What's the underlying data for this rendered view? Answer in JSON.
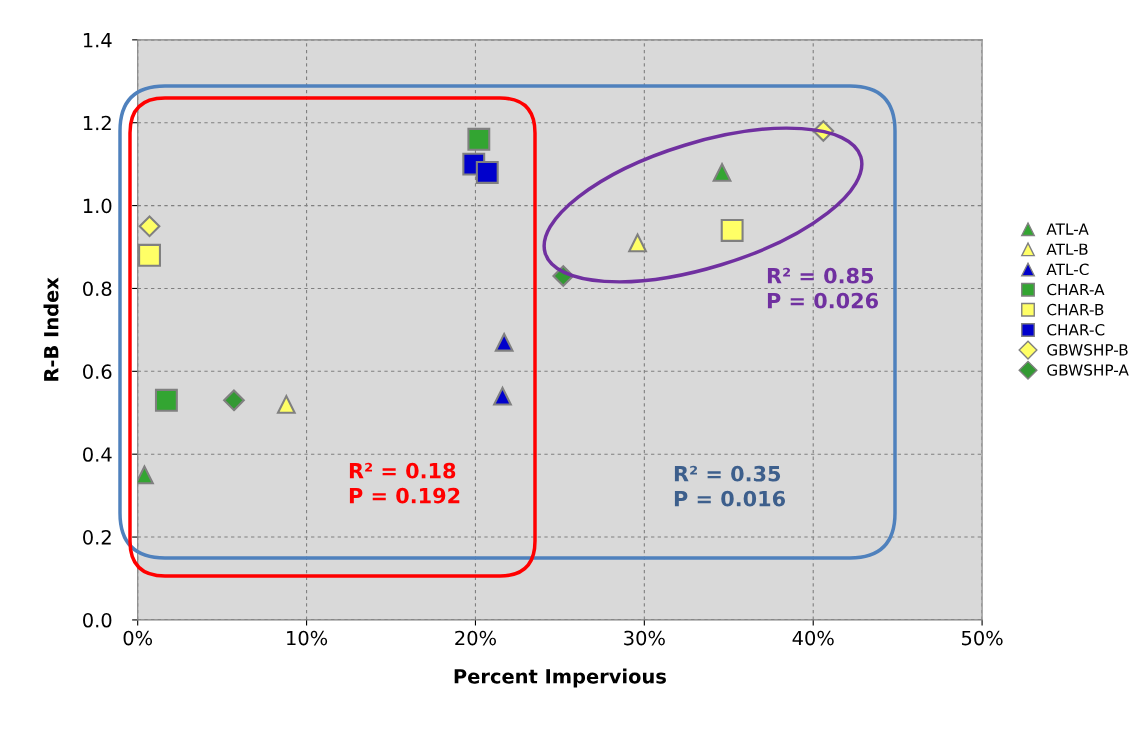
{
  "chart_data": {
    "type": "scatter",
    "xlabel": "Percent Impervious",
    "ylabel": "R-B Index",
    "xlim": [
      0,
      50
    ],
    "xticks": [
      {
        "value": 0,
        "label": "0%"
      },
      {
        "value": 10,
        "label": "10%"
      },
      {
        "value": 20,
        "label": "20%"
      },
      {
        "value": 30,
        "label": "30%"
      },
      {
        "value": 40,
        "label": "40%"
      },
      {
        "value": 50,
        "label": "50%"
      }
    ],
    "ylim": [
      0,
      1.4
    ],
    "yticks": [
      {
        "value": 0,
        "label": "0.0"
      },
      {
        "value": 0.2,
        "label": "0.2"
      },
      {
        "value": 0.4,
        "label": "0.4"
      },
      {
        "value": 0.6,
        "label": "0.6"
      },
      {
        "value": 0.8,
        "label": "0.8"
      },
      {
        "value": 1.0,
        "label": "1.0"
      },
      {
        "value": 1.2,
        "label": "1.2"
      },
      {
        "value": 1.4,
        "label": "1.4"
      }
    ],
    "grid": true,
    "legend": "right",
    "series": [
      {
        "name": "ATL-A",
        "color": "#33a532",
        "marker": "triangle",
        "x": [
          0.4,
          34.6
        ],
        "values": [
          0.35,
          1.08
        ]
      },
      {
        "name": "ATL-B",
        "color": "#ffff66",
        "marker": "triangle",
        "x": [
          8.8,
          29.6
        ],
        "values": [
          0.52,
          0.91
        ]
      },
      {
        "name": "ATL-C",
        "color": "#0000cc",
        "marker": "triangle",
        "x": [
          21.7,
          21.6
        ],
        "values": [
          0.67,
          0.54
        ]
      },
      {
        "name": "CHAR-A",
        "color": "#33a532",
        "marker": "square",
        "x": [
          1.7,
          20.2
        ],
        "values": [
          0.53,
          1.16
        ]
      },
      {
        "name": "CHAR-B",
        "color": "#ffff66",
        "marker": "square",
        "x": [
          0.7,
          35.2
        ],
        "values": [
          0.88,
          0.94
        ]
      },
      {
        "name": "CHAR-C",
        "color": "#0000cc",
        "marker": "square",
        "x": [
          19.9,
          20.7
        ],
        "values": [
          1.1,
          1.08
        ]
      },
      {
        "name": "GBWSHP-B",
        "color": "#ffff66",
        "marker": "diamond",
        "x": [
          0.7,
          40.6
        ],
        "values": [
          0.95,
          1.18
        ]
      },
      {
        "name": "GBWSHP-A",
        "color": "#339933",
        "marker": "diamond",
        "x": [
          5.7,
          25.2
        ],
        "values": [
          0.53,
          0.83
        ]
      }
    ],
    "annotations": [
      "R² = 0.18\nP = 0.192",
      "R² = 0.35\nP = 0.016",
      "R² = 0.85\nP = 0.026"
    ]
  }
}
